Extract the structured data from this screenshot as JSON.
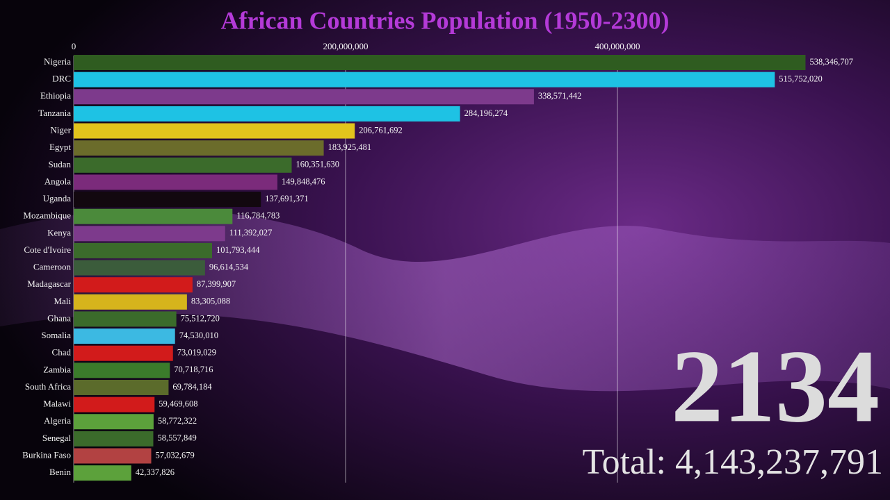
{
  "chart_data": {
    "type": "bar",
    "orientation": "horizontal",
    "title": "African Countries Population (1950-2300)",
    "year": "2134",
    "total": "Total: 4,143,237,791",
    "categories": [
      "Nigeria",
      "DRC",
      "Ethiopia",
      "Tanzania",
      "Niger",
      "Egypt",
      "Sudan",
      "Angola",
      "Uganda",
      "Mozambique",
      "Kenya",
      "Cote d'Ivoire",
      "Cameroon",
      "Madagascar",
      "Mali",
      "Ghana",
      "Somalia",
      "Chad",
      "Zambia",
      "South Africa",
      "Malawi",
      "Algeria",
      "Senegal",
      "Burkina Faso",
      "Benin"
    ],
    "values": [
      538346707,
      515752020,
      338571442,
      284196274,
      206761692,
      183925481,
      160351630,
      149848476,
      137691371,
      116784783,
      111392027,
      101793444,
      96614534,
      87399907,
      83305088,
      75512720,
      74530010,
      73019029,
      70718716,
      69784184,
      59469608,
      58772322,
      58557849,
      57032679,
      42337826
    ],
    "value_labels": [
      "538,346,707",
      "515,752,020",
      "338,571,442",
      "284,196,274",
      "206,761,692",
      "183,925,481",
      "160,351,630",
      "149,848,476",
      "137,691,371",
      "116,784,783",
      "111,392,027",
      "101,793,444",
      "96,614,534",
      "87,399,907",
      "83,305,088",
      "75,512,720",
      "74,530,010",
      "73,019,029",
      "70,718,716",
      "69,784,184",
      "59,469,608",
      "58,772,322",
      "58,557,849",
      "57,032,679",
      "42,337,826"
    ],
    "colors": [
      "#2f5c20",
      "#1ec2e4",
      "#7d3a8c",
      "#1ec2e4",
      "#e2c41c",
      "#6b6c2b",
      "#3b6b2b",
      "#7b2b7b",
      "#12080f",
      "#4b8a3b",
      "#7d3a8c",
      "#3b6b2b",
      "#3b5c3b",
      "#d21b1b",
      "#d6b41c",
      "#3b6b2b",
      "#3cb9e2",
      "#d21b1b",
      "#3b7b2b",
      "#5b6b2b",
      "#d21b1b",
      "#5ca13b",
      "#3b6b2b",
      "#b24242",
      "#5ca13b"
    ],
    "xlim": [
      0,
      600000000
    ],
    "xticks": [
      0,
      {
        "value": 200000000,
        "label": "200,000,000"
      },
      {
        "value": 400000000,
        "label": "400,000,000"
      }
    ],
    "grid": true
  }
}
